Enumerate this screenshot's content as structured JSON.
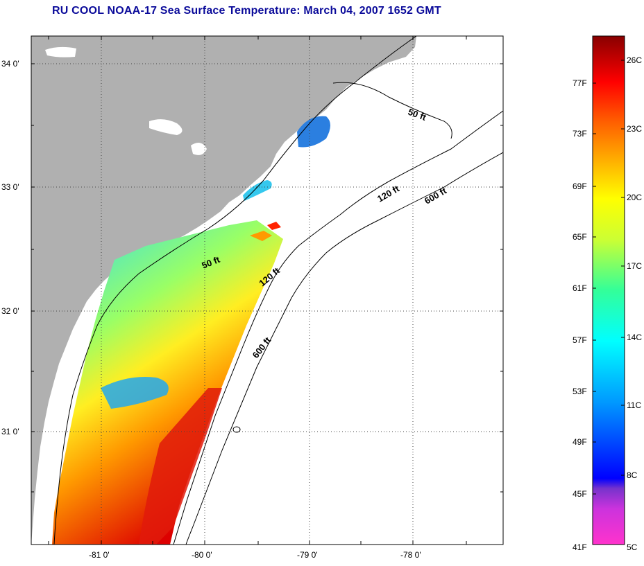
{
  "title": "RU COOL  NOAA-17  Sea Surface Temperature:  March 04, 2007 1652 GMT",
  "map": {
    "lat_ticks": [
      {
        "value": 34.0,
        "label": "34 0'"
      },
      {
        "value": 33.0,
        "label": "33 0'"
      },
      {
        "value": 32.0,
        "label": "32 0'"
      },
      {
        "value": 31.0,
        "label": "31 0'"
      }
    ],
    "lon_ticks": [
      {
        "value": -81.0,
        "label": "-81 0'"
      },
      {
        "value": -80.0,
        "label": "-80 0'"
      },
      {
        "value": -79.0,
        "label": "-79 0'"
      },
      {
        "value": -78.0,
        "label": "-78 0'"
      }
    ],
    "contour_labels": [
      {
        "text": "50 ft"
      },
      {
        "text": "120 ft"
      },
      {
        "text": "600 ft"
      },
      {
        "text": "50 ft"
      },
      {
        "text": "120 ft"
      },
      {
        "text": "600 ft"
      }
    ],
    "colors": {
      "land": "#b0b0b0",
      "ocean": "#ffffff",
      "grid": "#444444"
    }
  },
  "colorbar": {
    "fahrenheit_labels": [
      "77F",
      "73F",
      "69F",
      "65F",
      "61F",
      "57F",
      "53F",
      "49F",
      "45F",
      "41F"
    ],
    "celsius_labels": [
      "26C",
      "23C",
      "20C",
      "17C",
      "14C",
      "11C",
      "8C",
      "5C"
    ],
    "color_stops": [
      "#ff33cc",
      "#9933cc",
      "#0000ff",
      "#0099ff",
      "#00ffff",
      "#33ff99",
      "#ccff33",
      "#ffff00",
      "#ffaa00",
      "#ff5500",
      "#ff0000",
      "#cc0000",
      "#880000"
    ]
  }
}
